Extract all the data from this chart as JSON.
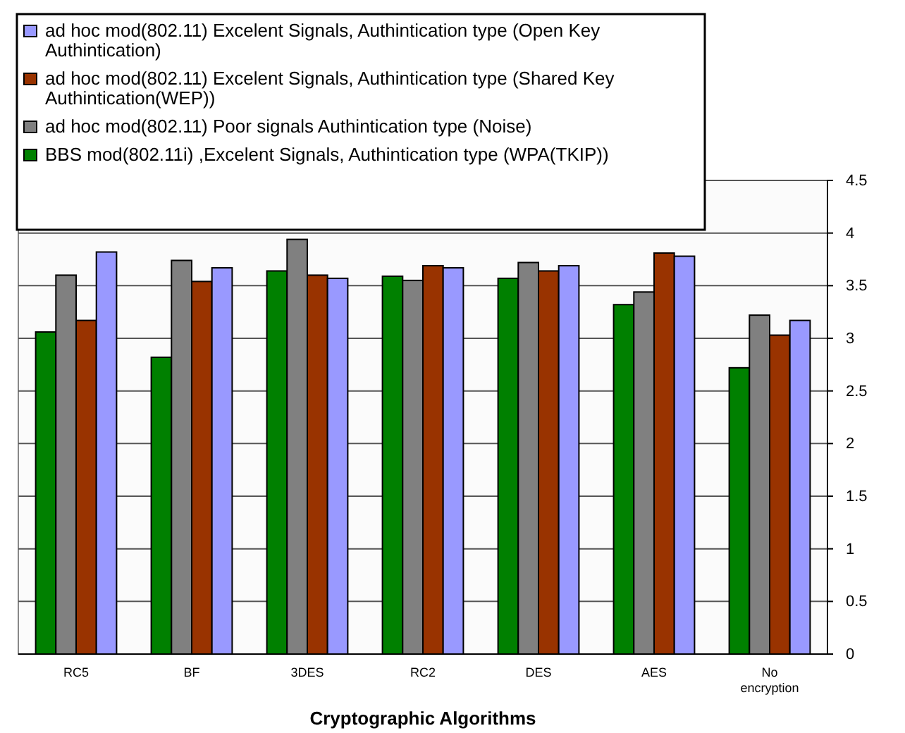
{
  "chart_data": {
    "type": "bar",
    "xlabel": "Cryptographic Algorithms",
    "categories": [
      "RC5",
      "BF",
      "3DES",
      "RC2",
      "DES",
      "AES",
      "No encryption"
    ],
    "series": [
      {
        "name": "BBS mod(802.11i) ,Excelent Signals, Authintication type (WPA(TKIP))",
        "color": "#008000",
        "values": [
          3.06,
          2.82,
          3.64,
          3.59,
          3.57,
          3.32,
          2.72
        ]
      },
      {
        "name": "ad hoc mod(802.11) Poor signals Authintication type (Noise)",
        "color": "#808080",
        "values": [
          3.6,
          3.74,
          3.94,
          3.55,
          3.72,
          3.44,
          3.22
        ]
      },
      {
        "name": "ad hoc mod(802.11) Excelent Signals, Authintication type (Shared Key Authintication(WEP))",
        "color": "#993300",
        "values": [
          3.17,
          3.54,
          3.6,
          3.69,
          3.64,
          3.81,
          3.03
        ]
      },
      {
        "name": "ad hoc mod(802.11) Excelent Signals, Authintication type (Open Key Authintication)",
        "color": "#9999ff",
        "values": [
          3.82,
          3.67,
          3.57,
          3.67,
          3.69,
          3.78,
          3.17
        ]
      }
    ],
    "ylim": [
      0,
      4.5
    ],
    "yticks": [
      0,
      0.5,
      1,
      1.5,
      2,
      2.5,
      3,
      3.5,
      4,
      4.5
    ],
    "grid": "y",
    "legend": "top left"
  }
}
